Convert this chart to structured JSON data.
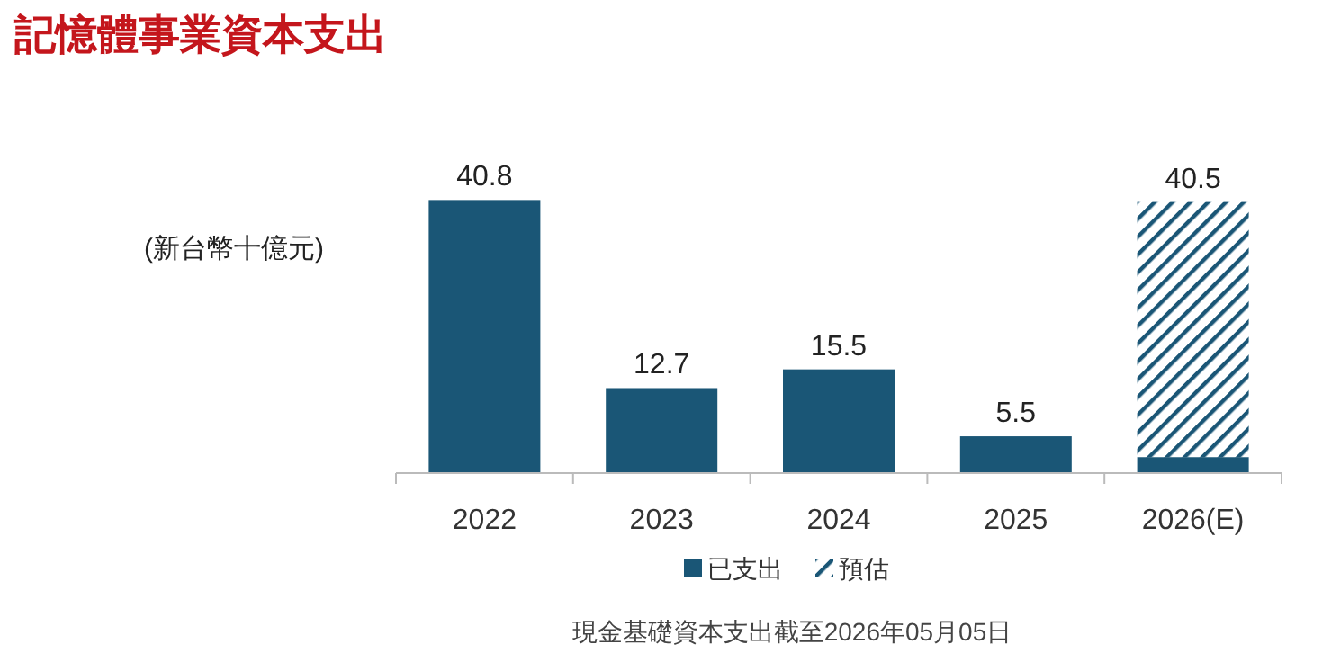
{
  "chart_data": {
    "type": "bar",
    "title": "記憶體事業資本支出",
    "ylabel": "(新台幣十億元)",
    "categories": [
      "2022",
      "2023",
      "2024",
      "2025",
      "2026(E)"
    ],
    "stacked": true,
    "legend": "bottom",
    "series": [
      {
        "name": "已支出",
        "color": "#1a5676",
        "values": [
          40.8,
          12.7,
          15.5,
          5.5,
          2.4
        ],
        "value_labels": [
          "40.8",
          "12.7",
          "15.5",
          "5.5",
          null
        ]
      },
      {
        "name": "預估",
        "color": "#1a5676",
        "values": [
          null,
          null,
          null,
          null,
          38.1
        ]
      }
    ],
    "totals": [
      null,
      null,
      null,
      null,
      "40.5"
    ],
    "annotations": [
      "現金基礎資本支出截至2026年05月05日"
    ]
  }
}
